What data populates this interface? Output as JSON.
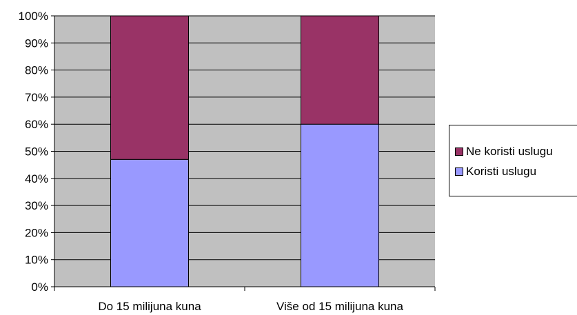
{
  "chart_data": {
    "type": "bar",
    "stacked": true,
    "percent_stacked": true,
    "categories": [
      "Do 15 milijuna kuna",
      "Više od 15 milijuna kuna"
    ],
    "series": [
      {
        "name": "Koristi uslugu",
        "values": [
          47,
          60
        ],
        "color": "#9999FF"
      },
      {
        "name": "Ne koristi uslugu",
        "values": [
          53,
          40
        ],
        "color": "#993366"
      }
    ],
    "y_ticks": [
      "0%",
      "10%",
      "20%",
      "30%",
      "40%",
      "50%",
      "60%",
      "70%",
      "80%",
      "90%",
      "100%"
    ],
    "ylim": [
      0,
      100
    ],
    "grid": true,
    "plot_background": "#C0C0C0",
    "legend_position": "right",
    "legend_order": [
      "Ne koristi uslugu",
      "Koristi uslugu"
    ]
  }
}
